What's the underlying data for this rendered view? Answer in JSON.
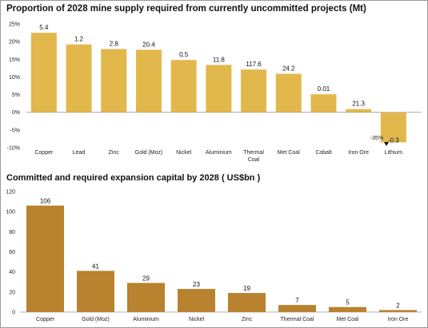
{
  "chart_data": [
    {
      "type": "bar",
      "title": "Proportion of 2028 mine supply required from currently uncommitted projects (Mt)",
      "categories": [
        "Copper",
        "Lead",
        "Zinc",
        "Gold (Moz)",
        "Nickel",
        "Aluminium",
        "Thermal Coal",
        "Met Coal",
        "Cobalt",
        "Iron Ore",
        "Lithium"
      ],
      "values": [
        22.5,
        19.2,
        17.9,
        17.7,
        14.8,
        13.4,
        12.1,
        10.9,
        5.1,
        0.9,
        -8.5
      ],
      "data_labels": [
        "5.4",
        "1.2",
        "2.8",
        "20.4",
        "0.5",
        "11.8",
        "117.6",
        "24.2",
        "0.01",
        "21.3",
        "-0.3"
      ],
      "yticks": [
        "25%",
        "20%",
        "15%",
        "10%",
        "5%",
        "0%",
        "-5%",
        "-10%"
      ],
      "ylim": [
        -10,
        25
      ],
      "annotation": "-35%",
      "color": "#E2B84D",
      "grid": false
    },
    {
      "type": "bar",
      "title": "Committed and required   expansion capital by 2028 ( US$bn )",
      "categories": [
        "Copper",
        "Gold (Moz)",
        "Aluminium",
        "Nickel",
        "Zinc",
        "Thermal Coal",
        "Met Coal",
        "Iron Ore"
      ],
      "values": [
        106,
        41,
        29,
        23,
        19,
        7,
        5,
        2
      ],
      "data_labels": [
        "106",
        "41",
        "29",
        "23",
        "19",
        "7",
        "5",
        "2"
      ],
      "yticks": [
        "120",
        "100",
        "80",
        "60",
        "40",
        "20",
        "0"
      ],
      "ylim": [
        0,
        120
      ],
      "color": "#B8822F",
      "grid": false
    }
  ]
}
